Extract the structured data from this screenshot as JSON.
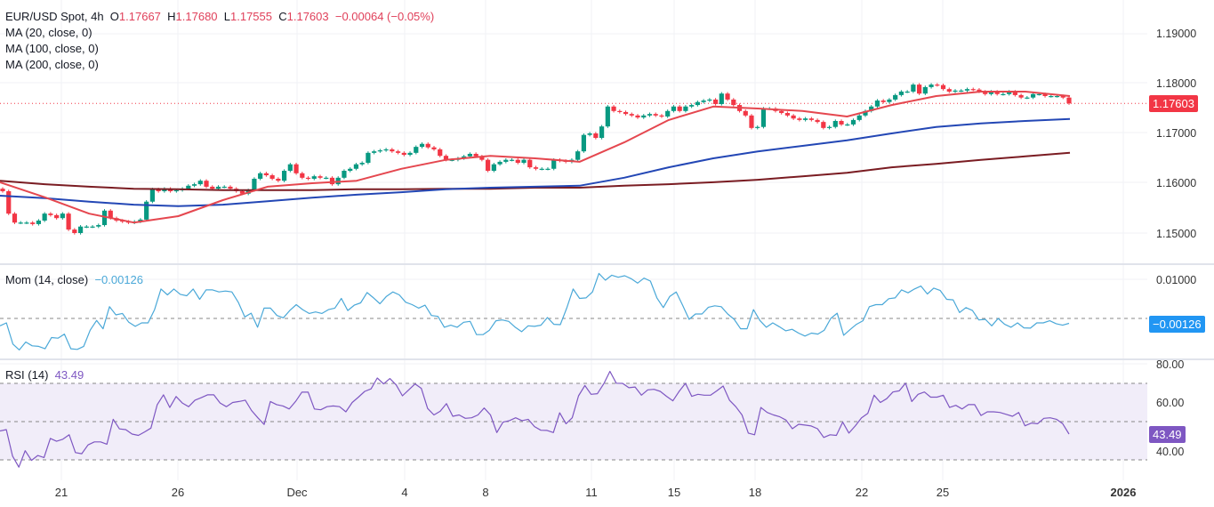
{
  "header": {
    "symbol": "EUR/USD Spot, 4h",
    "o_label": "O",
    "open": "1.17667",
    "h_label": "H",
    "high": "1.17680",
    "l_label": "L",
    "low": "1.17555",
    "c_label": "C",
    "close": "1.17603",
    "change": "−0.00064 (−0.05%)"
  },
  "indicators": {
    "ma20": "MA (20, close, 0)",
    "ma100": "MA (100, close, 0)",
    "ma200": "MA (200, close, 0)",
    "mom_label": "Mom (14, close)",
    "mom_value": "−0.00126",
    "rsi_label": "RSI (14)",
    "rsi_value": "43.49"
  },
  "price_tag": "1.17603",
  "colors": {
    "up": "#089981",
    "down": "#f23645",
    "ma20": "#e5474f",
    "ma100": "#2347b5",
    "ma200": "#7a1c22",
    "mom": "#4aa8d8",
    "rsi": "#7e57c2",
    "last_price": "#f23645"
  },
  "chart_data": [
    {
      "type": "candlestick",
      "title": "EUR/USD Spot, 4h",
      "y_ticks": [
        "1.19000",
        "1.18000",
        "1.17000",
        "1.16000",
        "1.15000"
      ],
      "ylim": [
        1.145,
        1.197
      ],
      "x_ticks": [
        "21",
        "26",
        "Dec",
        "4",
        "8",
        "11",
        "15",
        "18",
        "22",
        "25",
        "2026"
      ],
      "last_price": 1.17603,
      "closes": [
        1.1584,
        1.1539,
        1.1521,
        1.1521,
        1.1521,
        1.1518,
        1.1525,
        1.1539,
        1.1536,
        1.153,
        1.1539,
        1.1507,
        1.15,
        1.1513,
        1.1513,
        1.1513,
        1.1516,
        1.1545,
        1.153,
        1.1525,
        1.1523,
        1.1521,
        1.1523,
        1.1527,
        1.1563,
        1.1588,
        1.1584,
        1.1589,
        1.1584,
        1.1586,
        1.1589,
        1.1595,
        1.1598,
        1.1605,
        1.1593,
        1.1589,
        1.1593,
        1.1593,
        1.1589,
        1.1584,
        1.1579,
        1.1586,
        1.1609,
        1.162,
        1.1616,
        1.1609,
        1.1605,
        1.1625,
        1.1638,
        1.162,
        1.1611,
        1.1609,
        1.1614,
        1.1611,
        1.1611,
        1.1598,
        1.1611,
        1.1625,
        1.1629,
        1.1638,
        1.1641,
        1.1661,
        1.1664,
        1.1666,
        1.1668,
        1.1664,
        1.1661,
        1.1657,
        1.1661,
        1.1673,
        1.1679,
        1.1672,
        1.1668,
        1.1655,
        1.1647,
        1.1647,
        1.165,
        1.1654,
        1.1659,
        1.1654,
        1.1647,
        1.1625,
        1.1638,
        1.1643,
        1.1647,
        1.1647,
        1.1641,
        1.1647,
        1.1632,
        1.1629,
        1.1629,
        1.1629,
        1.1647,
        1.1645,
        1.1643,
        1.1647,
        1.1664,
        1.1697,
        1.17,
        1.1691,
        1.1714,
        1.1754,
        1.1745,
        1.1743,
        1.1739,
        1.1736,
        1.1732,
        1.1736,
        1.1739,
        1.1736,
        1.1734,
        1.1745,
        1.1754,
        1.1745,
        1.1754,
        1.1757,
        1.1763,
        1.1766,
        1.1768,
        1.1759,
        1.178,
        1.1768,
        1.1757,
        1.1745,
        1.1736,
        1.1711,
        1.1713,
        1.175,
        1.175,
        1.1745,
        1.1741,
        1.1736,
        1.173,
        1.1727,
        1.173,
        1.1727,
        1.1723,
        1.1711,
        1.1713,
        1.1725,
        1.1718,
        1.1718,
        1.1727,
        1.1736,
        1.1745,
        1.1754,
        1.1766,
        1.1763,
        1.1768,
        1.1777,
        1.1784,
        1.1784,
        1.1798,
        1.178,
        1.1793,
        1.1798,
        1.1797,
        1.1789,
        1.1784,
        1.1786,
        1.1786,
        1.1789,
        1.1788,
        1.1784,
        1.1779,
        1.1784,
        1.1779,
        1.1779,
        1.1784,
        1.1777,
        1.1772,
        1.1772,
        1.1779,
        1.1779,
        1.1775,
        1.1775,
        1.1775,
        1.1772,
        1.17603
      ],
      "series": [
        {
          "name": "MA (20, close, 0)",
          "values": [
            1.1602,
            1.1572,
            1.1539,
            1.1521,
            1.1534,
            1.1566,
            1.1593,
            1.16,
            1.1605,
            1.1629,
            1.1647,
            1.1655,
            1.165,
            1.1643,
            1.1682,
            1.1727,
            1.1754,
            1.175,
            1.1745,
            1.1734,
            1.1757,
            1.1775,
            1.1784,
            1.1784,
            1.1775
          ]
        },
        {
          "name": "MA (100, close, 0)",
          "values": [
            1.1575,
            1.157,
            1.1563,
            1.1557,
            1.1554,
            1.1557,
            1.1564,
            1.1571,
            1.1577,
            1.1582,
            1.1588,
            1.1591,
            1.1593,
            1.1595,
            1.1611,
            1.1632,
            1.165,
            1.1664,
            1.1675,
            1.1686,
            1.17,
            1.1713,
            1.172,
            1.1725,
            1.1729
          ]
        },
        {
          "name": "MA (200, close, 0)",
          "values": [
            1.1605,
            1.1598,
            1.1593,
            1.1589,
            1.1588,
            1.1586,
            1.1586,
            1.1586,
            1.1588,
            1.1588,
            1.1589,
            1.1589,
            1.1591,
            1.1591,
            1.1595,
            1.1598,
            1.1602,
            1.1607,
            1.1614,
            1.1621,
            1.1632,
            1.1639,
            1.1647,
            1.1654,
            1.1661
          ]
        }
      ]
    },
    {
      "type": "line",
      "title": "Mom (14, close)",
      "y_ticks": [
        "0.01000"
      ],
      "reference_line": 0,
      "last_value": -0.00126,
      "values": [
        -0.00188,
        -0.00113,
        -0.00654,
        -0.00805,
        -0.00602,
        -0.00699,
        -0.00714,
        -0.00775,
        -0.00489,
        -0.00504,
        -0.00399,
        -0.00775,
        -0.0079,
        -0.00714,
        -0.00301,
        -0.00053,
        -0.00263,
        0.00301,
        0.0009,
        0.00128,
        -0.00098,
        -0.00203,
        -0.00113,
        -0.00113,
        0.00226,
        0.00752,
        0.00602,
        0.00752,
        0.00617,
        0.00579,
        0.00752,
        0.00489,
        0.00729,
        0.00729,
        0.00677,
        0.00699,
        0.00677,
        0.00414,
        0.00038,
        0.00135,
        -0.00226,
        0.00263,
        0.00263,
        0.00075,
        0.00015,
        0.00203,
        0.00353,
        0.00226,
        0.00128,
        0.00165,
        0.00128,
        0.00226,
        0.00263,
        0.00511,
        0.00203,
        0.00338,
        0.00398,
        0.00662,
        0.00526,
        0.00376,
        0.00564,
        0.00677,
        0.00602,
        0.00414,
        0.00353,
        0.00263,
        0.00338,
        0.00075,
        0.00053,
        -0.00226,
        -0.00173,
        -0.00226,
        -0.00098,
        -0.00075,
        -0.00414,
        -0.00414,
        -0.00301,
        -0.0006,
        -0.00038,
        -0.00075,
        -0.00226,
        -0.00338,
        -0.00188,
        -0.00203,
        -0.00173,
        0.00023,
        -0.0015,
        -0.00158,
        0.00263,
        0.00752,
        0.00511,
        0.00526,
        0.00677,
        0.0115,
        0.00977,
        0.01105,
        0.01053,
        0.0109,
        0.01015,
        0.00902,
        0.0103,
        0.00955,
        0.00526,
        0.00278,
        0.00564,
        0.00677,
        0.00338,
        -0.00023,
        0.00113,
        0.00113,
        0.00286,
        0.00323,
        0.00301,
        0.00113,
        -0.00023,
        -0.00263,
        -0.00263,
        0.00226,
        -0.00053,
        -0.00226,
        -0.00113,
        -0.00211,
        -0.00316,
        -0.00278,
        -0.00376,
        -0.00451,
        -0.00376,
        -0.00399,
        -0.00301,
        0,
        0.00135,
        -0.00429,
        -0.00286,
        -0.0015,
        -0.0006,
        0.00301,
        0.00353,
        0.00353,
        0.00504,
        0.00526,
        0.00729,
        0.00654,
        0.00752,
        0.00827,
        0.00624,
        0.00775,
        0.00714,
        0.00489,
        0.00474,
        0.0015,
        0.00278,
        0.00203,
        -0.00038,
        -0.00023,
        -0.00188,
        0,
        -0.0015,
        -0.00226,
        -0.00113,
        -0.00241,
        -0.00248,
        -0.00113,
        -0.00113,
        -0.0006,
        -0.00135,
        -0.00173,
        -0.00126
      ]
    },
    {
      "type": "line",
      "title": "RSI (14)",
      "y_ticks": [
        "80.00",
        "60.00",
        "40.00"
      ],
      "band": [
        30,
        70
      ],
      "reference_lines": [
        30,
        50,
        70
      ],
      "last_value": 43.49,
      "values": [
        45.1,
        45.8,
        32.0,
        26.2,
        34.8,
        29.7,
        32.3,
        31.2,
        41.2,
        39.7,
        40.8,
        43.1,
        33.8,
        33.2,
        37.8,
        39.4,
        39.4,
        38.2,
        51.2,
        46.2,
        45.8,
        43.5,
        42.8,
        44.6,
        46.6,
        58.9,
        64.0,
        57.4,
        63.1,
        59.7,
        57.8,
        61.2,
        62.5,
        64.0,
        64.0,
        59.7,
        57.8,
        60.0,
        60.5,
        61.2,
        55.8,
        52.0,
        48.5,
        60.5,
        58.9,
        58.2,
        56.6,
        60.5,
        65.4,
        65.4,
        56.6,
        56.2,
        57.8,
        58.2,
        57.8,
        55.1,
        60.0,
        62.8,
        65.8,
        67.1,
        72.8,
        69.7,
        72.5,
        69.2,
        63.5,
        66.6,
        69.7,
        67.4,
        56.9,
        53.5,
        55.4,
        59.4,
        52.8,
        53.5,
        51.7,
        52.0,
        53.5,
        57.1,
        53.5,
        44.3,
        49.7,
        50.5,
        52.0,
        50.5,
        51.2,
        47.4,
        45.5,
        45.4,
        44.3,
        54.6,
        48.9,
        52.0,
        63.5,
        68.9,
        64.3,
        64.6,
        69.7,
        76.3,
        70.1,
        70.0,
        67.7,
        68.1,
        63.8,
        66.6,
        66.9,
        65.8,
        63.2,
        60.9,
        65.8,
        70.0,
        63.2,
        64.3,
        63.8,
        63.8,
        66.1,
        68.6,
        61.2,
        57.8,
        53.5,
        44.0,
        43.1,
        57.4,
        54.8,
        53.5,
        52.5,
        50.8,
        46.3,
        48.6,
        48.2,
        47.7,
        46.3,
        41.7,
        43.1,
        42.8,
        49.7,
        44.0,
        47.7,
        52.0,
        54.3,
        63.8,
        60.0,
        62.0,
        65.5,
        66.1,
        70.1,
        60.5,
        64.3,
        65.5,
        62.8,
        62.8,
        63.8,
        57.4,
        58.5,
        56.6,
        58.9,
        58.9,
        53.2,
        55.1,
        55.1,
        54.8,
        53.8,
        52.8,
        54.8,
        47.8,
        49.2,
        48.9,
        51.7,
        52.0,
        51.2,
        48.9,
        43.49
      ]
    }
  ]
}
